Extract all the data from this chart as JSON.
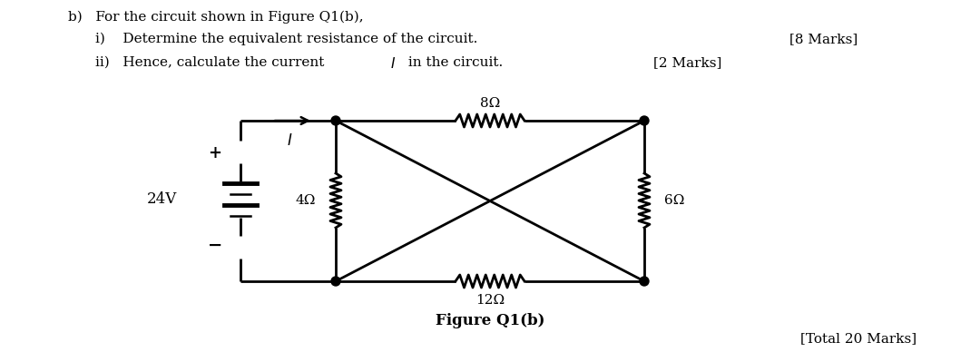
{
  "title_text": "b)   For the circuit shown in Figure Q1(b),",
  "item_i": "i)    Determine the equivalent resistance of the circuit.",
  "item_ii": "ii)   Hence, calculate the current  I  in the circuit.",
  "marks_i": "[8 Marks]",
  "marks_ii": "[2 Marks]",
  "marks_total": "[Total 20 Marks]",
  "fig_label": "Figure Q1(b)",
  "R1": "8Ω",
  "R2": "4Ω",
  "R3": "12Ω",
  "R4": "6Ω",
  "voltage": "24V",
  "line_color": "#000000",
  "bg_color": "#ffffff",
  "lw": 2.0
}
